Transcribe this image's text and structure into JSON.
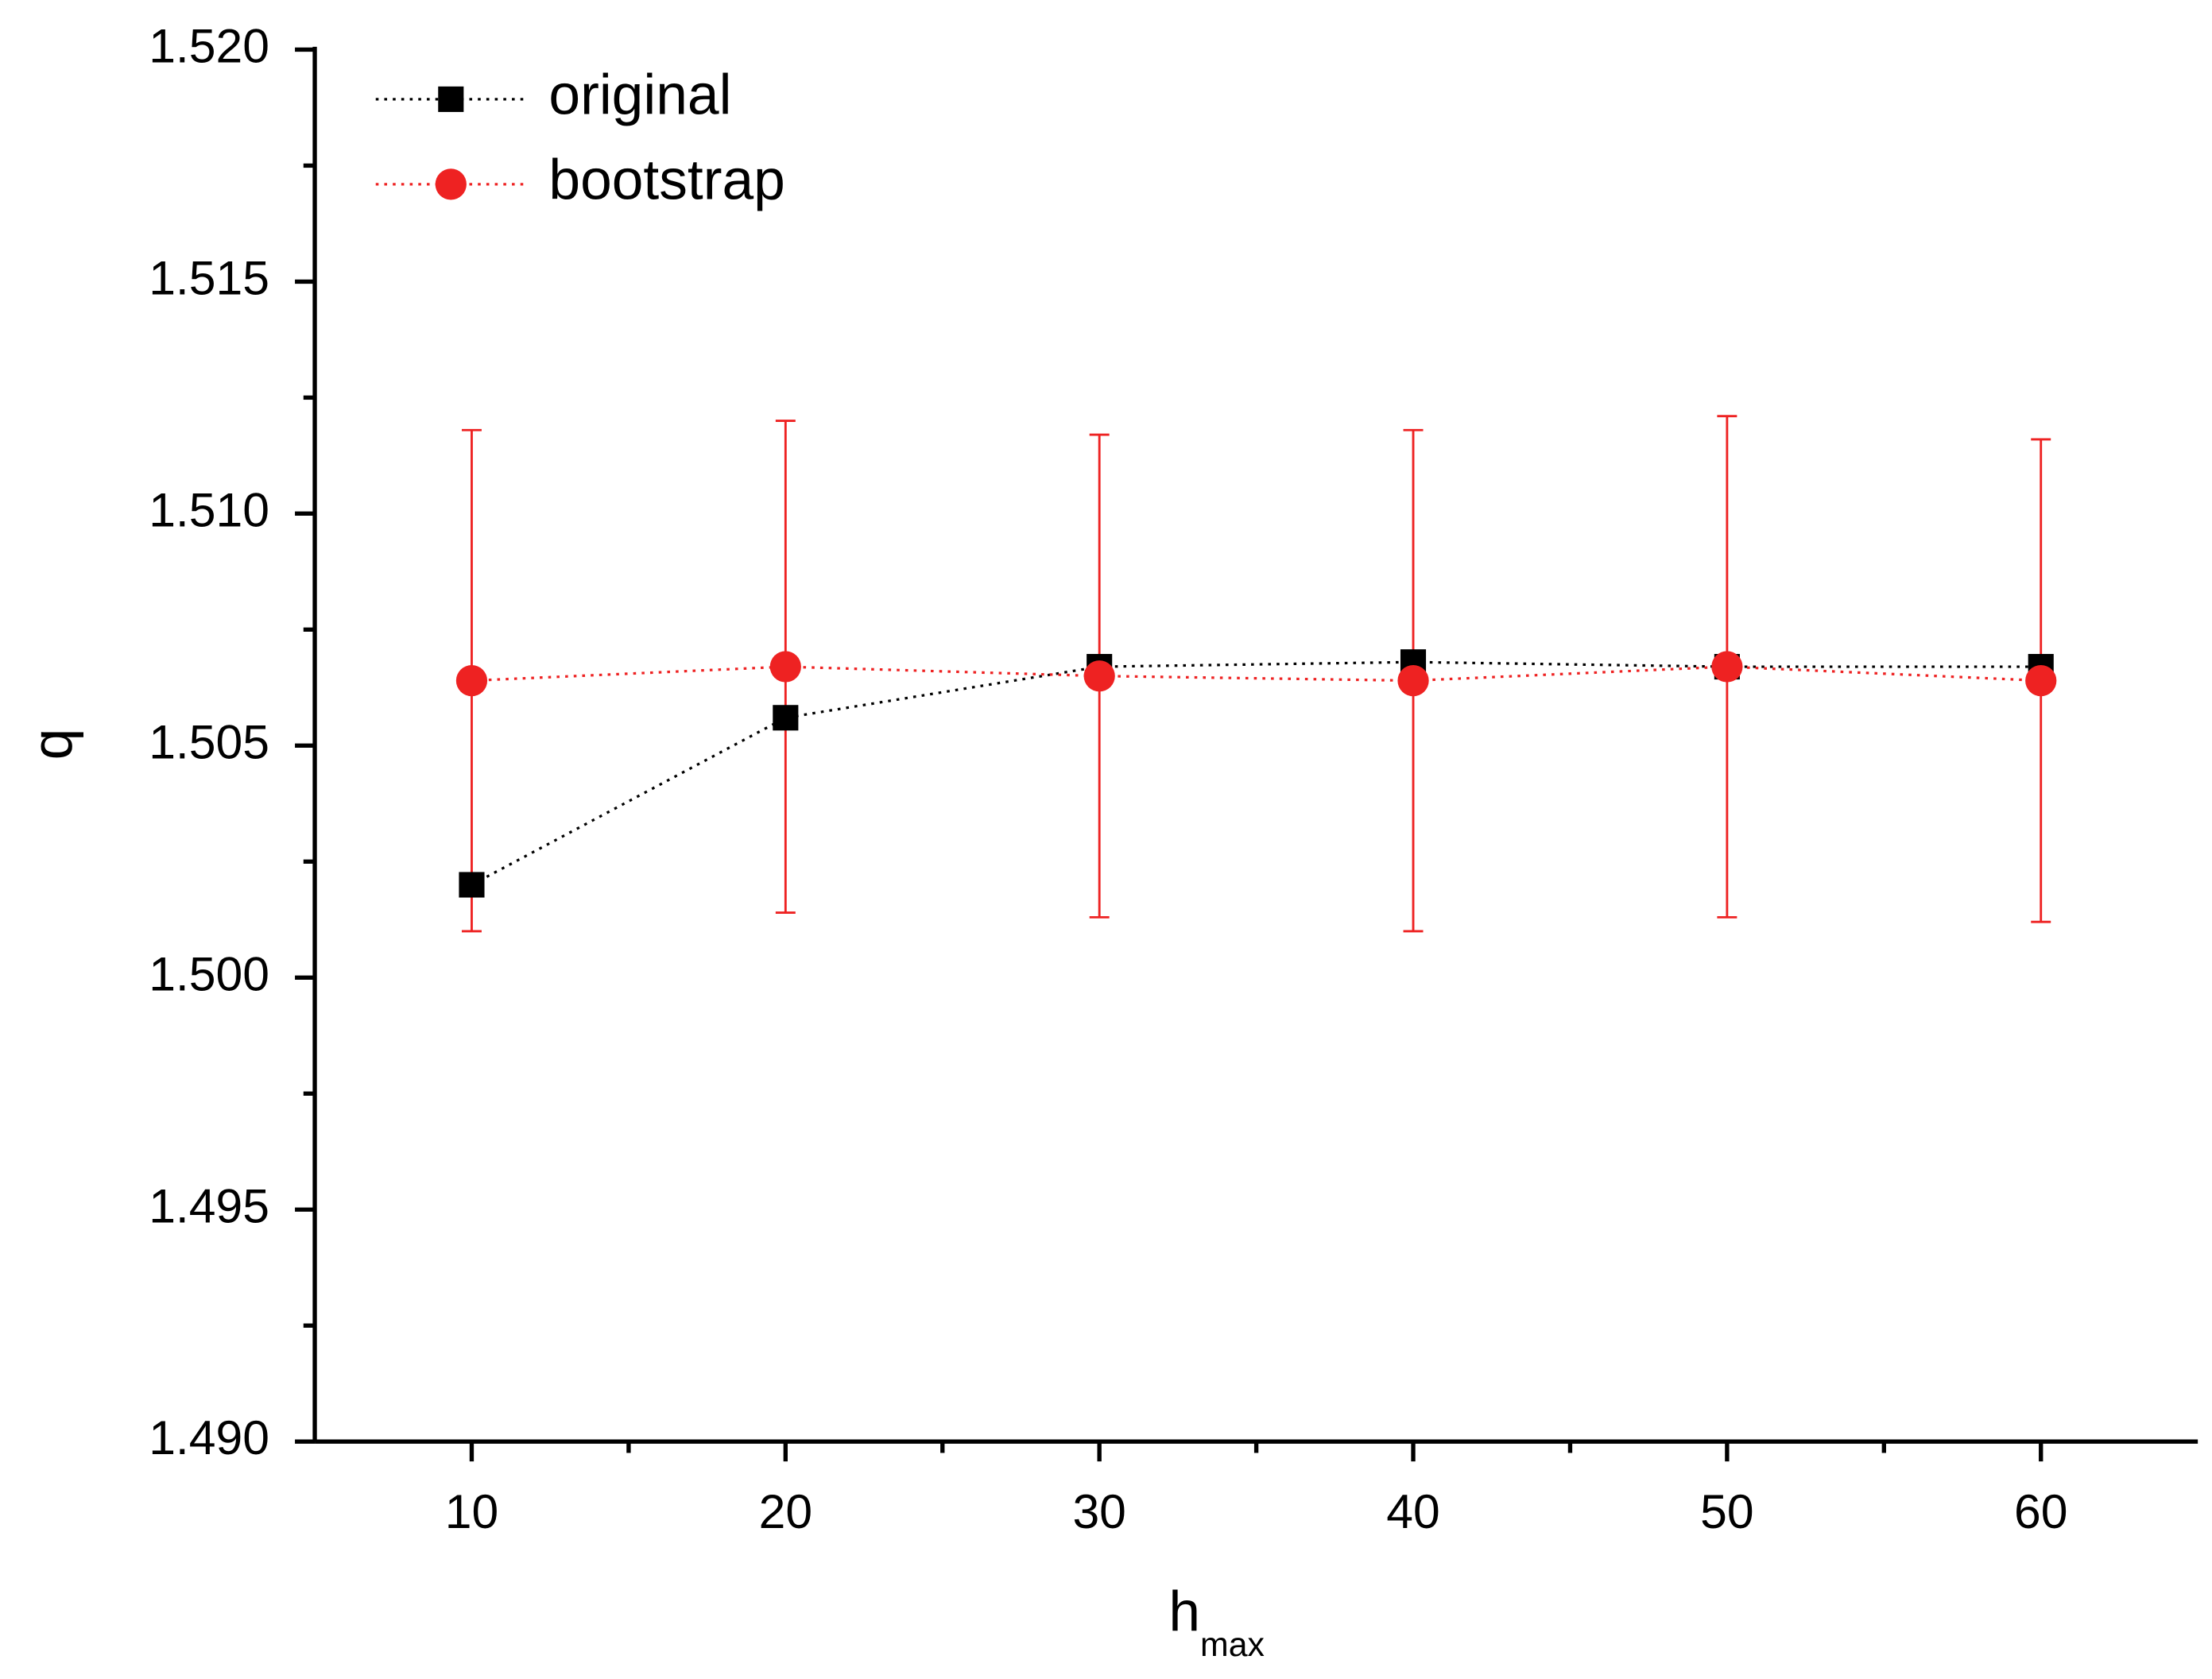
{
  "chart_data": {
    "type": "line",
    "x_label": "h",
    "x_label_subscript": "max",
    "y_label": "q",
    "x": [
      10,
      20,
      30,
      40,
      50,
      60
    ],
    "series": [
      {
        "name": "original",
        "color": "#000000",
        "marker": "square",
        "values": [
          1.502,
          1.5056,
          1.5067,
          1.5068,
          1.5067,
          1.5067
        ]
      },
      {
        "name": "bootstrap",
        "color": "#ee2222",
        "marker": "circle",
        "values": [
          1.5064,
          1.5067,
          1.5065,
          1.5064,
          1.5067,
          1.5064
        ],
        "errors": [
          0.0054,
          0.0053,
          0.0052,
          0.0054,
          0.0054,
          0.0052
        ]
      }
    ],
    "xlim": [
      5,
      65
    ],
    "xticks": [
      10,
      20,
      30,
      40,
      50,
      60
    ],
    "xminorticks": [
      15,
      25,
      35,
      45,
      55
    ],
    "ylim": [
      1.49,
      1.52
    ],
    "yticks": [
      {
        "value": 1.49,
        "label": "1.490"
      },
      {
        "value": 1.495,
        "label": "1.495"
      },
      {
        "value": 1.5,
        "label": "1.500"
      },
      {
        "value": 1.505,
        "label": "1.505"
      },
      {
        "value": 1.51,
        "label": "1.510"
      },
      {
        "value": 1.515,
        "label": "1.515"
      },
      {
        "value": 1.52,
        "label": "1.520"
      }
    ],
    "yminorticks": [
      1.4925,
      1.4975,
      1.5025,
      1.5075,
      1.5125,
      1.5175
    ],
    "legend": "top-left",
    "grid": false
  }
}
